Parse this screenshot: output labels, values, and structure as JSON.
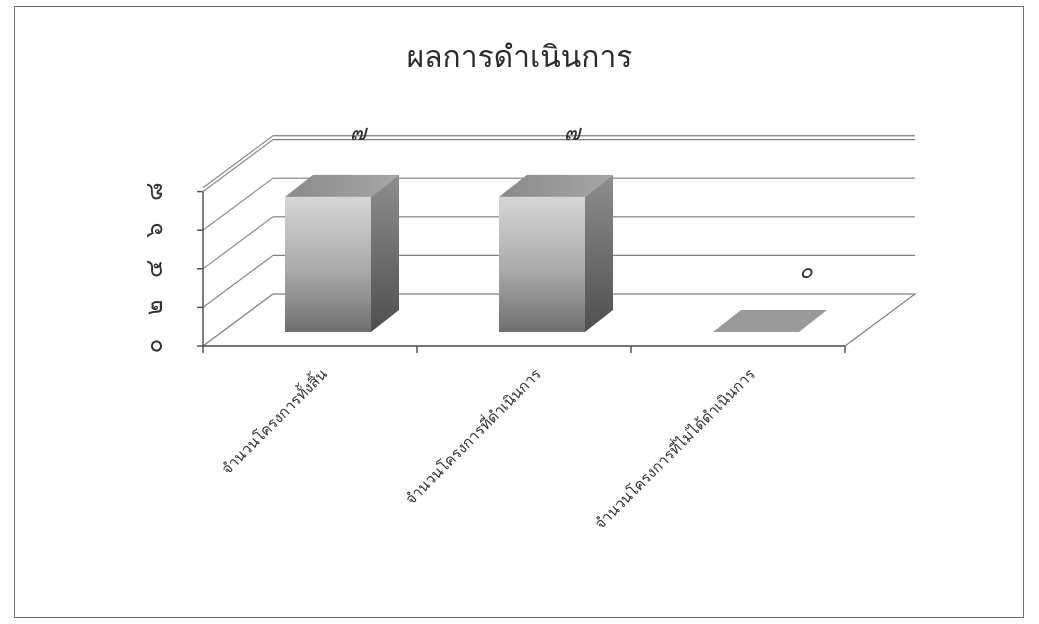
{
  "chart_data": {
    "type": "bar",
    "title": "ผลการดำเนินการ",
    "categories": [
      "จำนวนโครงการทั้งสิ้น",
      "จำนวนโครงการที่ดำเนินการ",
      "จำนวนโครงการที่ไม่ได้ดำเนินการ"
    ],
    "values": [
      7,
      7,
      0
    ],
    "value_labels": [
      "๗",
      "๗",
      "๐"
    ],
    "y_ticks": [
      0,
      2,
      4,
      6,
      8
    ],
    "y_tick_labels": [
      "๐",
      "๒",
      "๔",
      "๖",
      "๘"
    ],
    "ylim": [
      0,
      8
    ],
    "grid": true,
    "three_d": true,
    "bar_color": "#9a9a9a"
  }
}
